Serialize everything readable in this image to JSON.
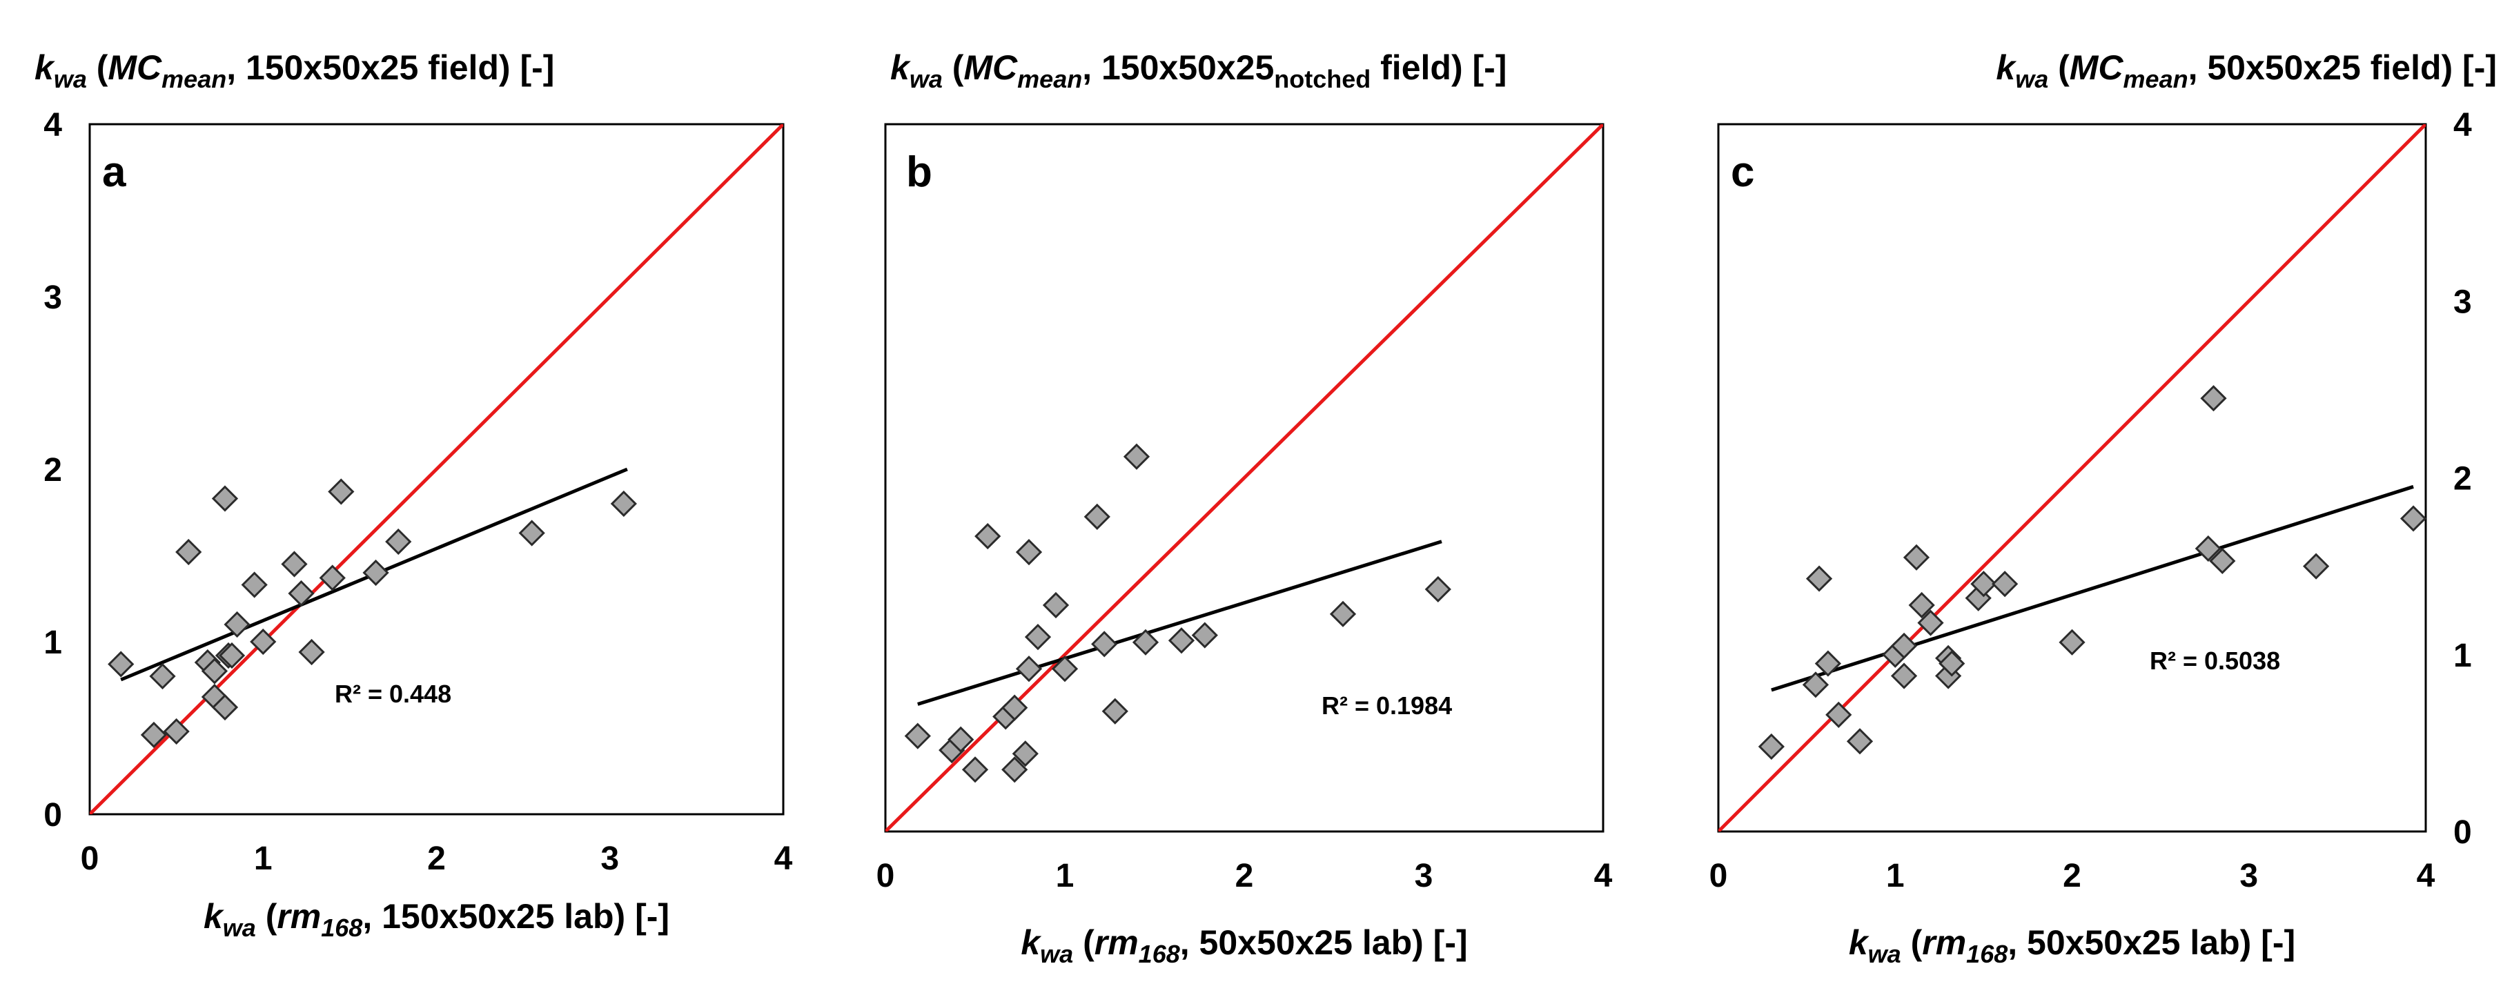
{
  "figure": {
    "background": "#ffffff",
    "identity_line_color": "#e8191a",
    "trend_line_color": "#000000",
    "marker_fill": "#a6a6a6",
    "marker_stroke": "#2b2b2b"
  },
  "chart_data": [
    {
      "type": "scatter",
      "panel_label": "a",
      "ylabel_parts": [
        {
          "t": "k",
          "it": true
        },
        {
          "t": "wa",
          "it": true,
          "sub": true
        },
        {
          "t": " ("
        },
        {
          "t": "MC",
          "it": true
        },
        {
          "t": "mean",
          "it": true,
          "sub": true
        },
        {
          "t": ", 150x50x25 field) [-]"
        }
      ],
      "xlabel_parts": [
        {
          "t": "k",
          "it": true
        },
        {
          "t": "wa",
          "it": true,
          "sub": true
        },
        {
          "t": " ("
        },
        {
          "t": "rm",
          "it": true
        },
        {
          "t": "168",
          "it": true,
          "sub": true
        },
        {
          "t": ", 150x50x25 lab) [-]"
        }
      ],
      "ylabel": "kwa (MCmean, 150x50x25 field) [-]",
      "xlabel": "kwa (rm168, 150x50x25 lab) [-]",
      "xlim": [
        0,
        4
      ],
      "ylim": [
        0,
        4
      ],
      "xticks": [
        0,
        1,
        2,
        3,
        4
      ],
      "yticks": [
        0,
        1,
        2,
        3,
        4
      ],
      "yaxis_side": "left",
      "show_ytick_labels": true,
      "r_squared": "R² = 0.448",
      "trendline": {
        "x": [
          0.18,
          3.1
        ],
        "y": [
          0.78,
          2.0
        ]
      },
      "identity_line": {
        "x": [
          0,
          4
        ],
        "y": [
          0,
          4
        ]
      },
      "points": {
        "x": [
          0.18,
          0.42,
          0.37,
          0.5,
          0.57,
          0.68,
          0.72,
          0.72,
          0.78,
          0.78,
          0.8,
          0.82,
          0.85,
          0.95,
          1.0,
          1.18,
          1.22,
          1.28,
          1.4,
          1.45,
          1.65,
          1.78,
          2.55,
          3.08
        ],
        "y": [
          0.87,
          0.8,
          0.46,
          0.48,
          1.52,
          0.88,
          0.83,
          0.68,
          0.62,
          1.83,
          0.92,
          0.92,
          1.1,
          1.33,
          1.0,
          1.45,
          1.28,
          0.94,
          1.37,
          1.87,
          1.4,
          1.58,
          1.63,
          1.8
        ]
      }
    },
    {
      "type": "scatter",
      "panel_label": "b",
      "ylabel_parts": [
        {
          "t": "k",
          "it": true
        },
        {
          "t": "wa",
          "it": true,
          "sub": true
        },
        {
          "t": " ("
        },
        {
          "t": "MC",
          "it": true
        },
        {
          "t": "mean",
          "it": true,
          "sub": true
        },
        {
          "t": ", 150x50x25"
        },
        {
          "t": "notched",
          "sub": true
        },
        {
          "t": " field) [-]"
        }
      ],
      "xlabel_parts": [
        {
          "t": "k",
          "it": true
        },
        {
          "t": "wa",
          "it": true,
          "sub": true
        },
        {
          "t": " ("
        },
        {
          "t": "rm",
          "it": true
        },
        {
          "t": "168",
          "it": true,
          "sub": true
        },
        {
          "t": ", 50x50x25 lab) [-]"
        }
      ],
      "ylabel": "kwa (MCmean, 150x50x25notched field) [-]",
      "xlabel": "kwa (rm168, 50x50x25 lab) [-]",
      "xlim": [
        0,
        4
      ],
      "ylim": [
        0,
        4
      ],
      "xticks": [
        0,
        1,
        2,
        3,
        4
      ],
      "yticks": [
        0,
        1,
        2,
        3,
        4
      ],
      "yaxis_side": "none",
      "show_ytick_labels": false,
      "r_squared": "R² = 0.1984",
      "trendline": {
        "x": [
          0.18,
          3.1
        ],
        "y": [
          0.72,
          1.64
        ]
      },
      "identity_line": {
        "x": [
          0,
          4
        ],
        "y": [
          0,
          4
        ]
      },
      "points": {
        "x": [
          0.18,
          0.37,
          0.42,
          0.5,
          0.57,
          0.67,
          0.72,
          0.72,
          0.78,
          0.8,
          0.8,
          0.85,
          0.95,
          1.0,
          1.18,
          1.22,
          1.28,
          1.4,
          1.45,
          1.65,
          1.78,
          2.55,
          3.08
        ],
        "y": [
          0.54,
          0.46,
          0.52,
          0.35,
          1.67,
          0.65,
          0.35,
          0.7,
          0.44,
          1.58,
          0.92,
          1.1,
          1.28,
          0.92,
          1.78,
          1.06,
          0.68,
          2.12,
          1.07,
          1.08,
          1.11,
          1.23,
          1.37
        ]
      }
    },
    {
      "type": "scatter",
      "panel_label": "c",
      "ylabel_parts": [
        {
          "t": "k",
          "it": true
        },
        {
          "t": "wa",
          "it": true,
          "sub": true
        },
        {
          "t": " ("
        },
        {
          "t": "MC",
          "it": true
        },
        {
          "t": "mean",
          "it": true,
          "sub": true
        },
        {
          "t": ", 50x50x25 field) [-]"
        }
      ],
      "xlabel_parts": [
        {
          "t": "k",
          "it": true
        },
        {
          "t": "wa",
          "it": true,
          "sub": true
        },
        {
          "t": " ("
        },
        {
          "t": "rm",
          "it": true
        },
        {
          "t": "168",
          "it": true,
          "sub": true
        },
        {
          "t": ", 50x50x25 lab) [-]"
        }
      ],
      "ylabel": "kwa (MCmean, 50x50x25 field) [-]",
      "xlabel": "kwa (rm168, 50x50x25 lab) [-]",
      "xlim": [
        0,
        4
      ],
      "ylim": [
        0,
        4
      ],
      "xticks": [
        0,
        1,
        2,
        3,
        4
      ],
      "yticks": [
        0,
        1,
        2,
        3,
        4
      ],
      "yaxis_side": "right",
      "show_ytick_labels": true,
      "r_squared": "R² = 0.5038",
      "trendline": {
        "x": [
          0.3,
          3.93
        ],
        "y": [
          0.8,
          1.95
        ]
      },
      "identity_line": {
        "x": [
          0,
          4
        ],
        "y": [
          0,
          4
        ]
      },
      "points": {
        "x": [
          0.3,
          0.55,
          0.57,
          0.62,
          0.68,
          0.8,
          1.0,
          1.05,
          1.05,
          1.12,
          1.15,
          1.2,
          1.3,
          1.3,
          1.32,
          1.47,
          1.5,
          1.62,
          2.0,
          2.77,
          2.8,
          2.85,
          3.38,
          3.93
        ],
        "y": [
          0.48,
          0.83,
          1.43,
          0.95,
          0.66,
          0.51,
          1.0,
          1.05,
          0.88,
          1.55,
          1.28,
          1.18,
          0.88,
          0.98,
          0.95,
          1.32,
          1.4,
          1.4,
          1.07,
          1.6,
          2.45,
          1.53,
          1.5,
          1.77
        ]
      }
    }
  ]
}
